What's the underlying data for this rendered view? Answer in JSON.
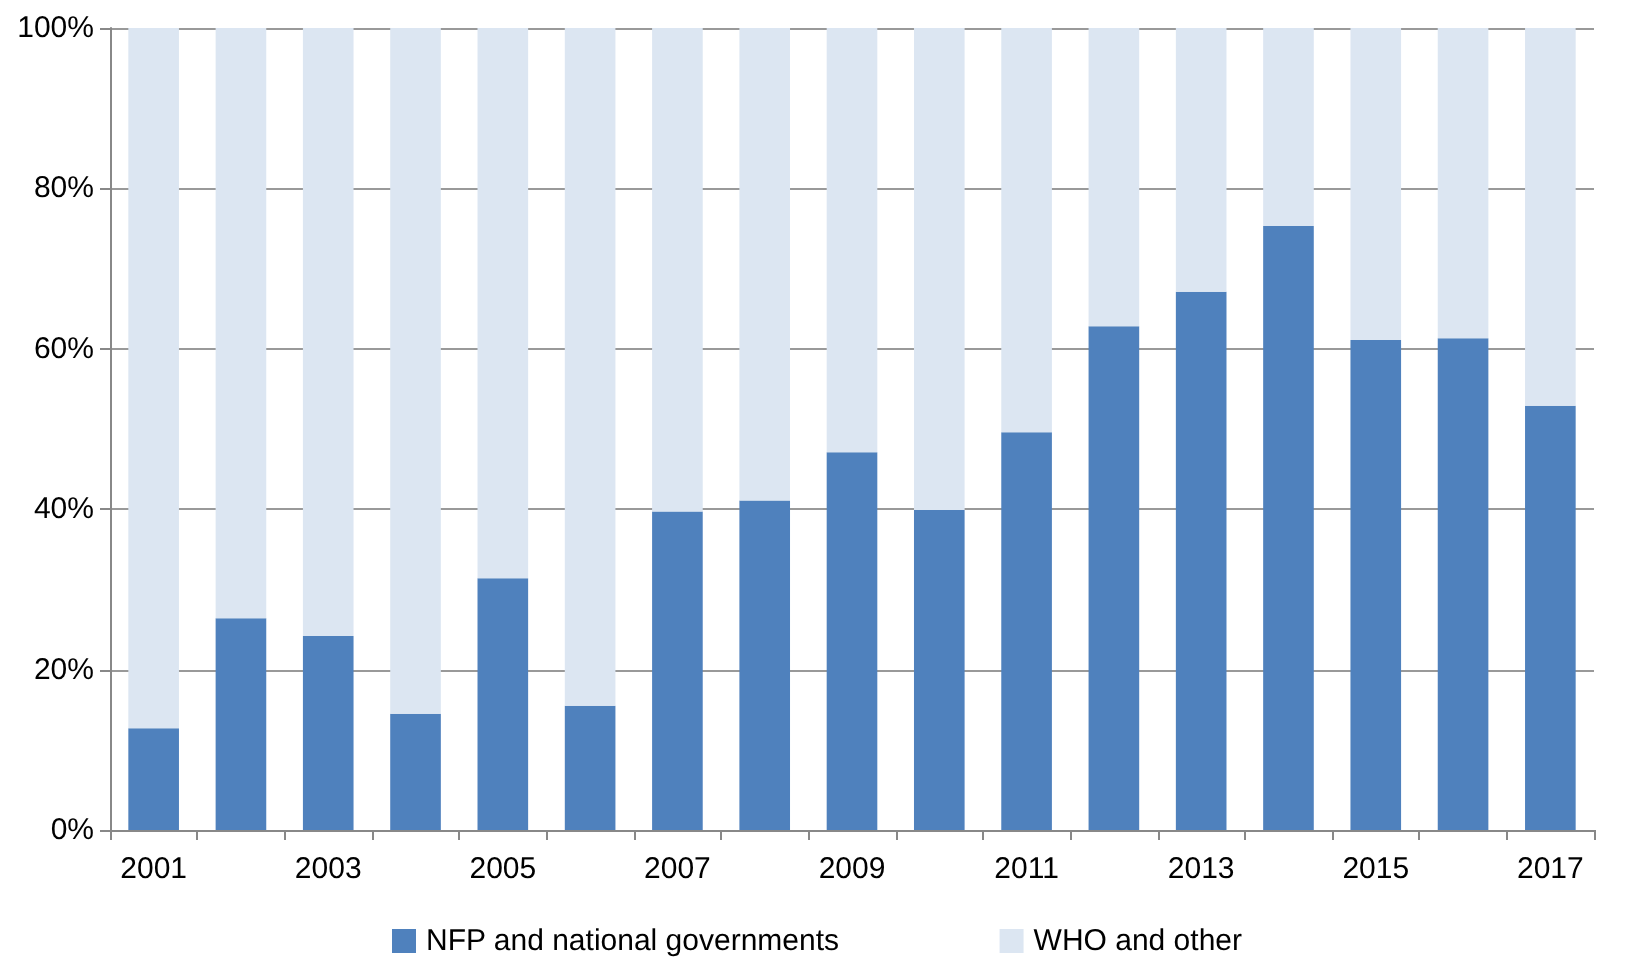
{
  "chart_data": {
    "type": "bar",
    "stacked": true,
    "categories": [
      "2001",
      null,
      "2003",
      null,
      "2005",
      null,
      "2007",
      null,
      "2009",
      null,
      "2011",
      null,
      "2013",
      null,
      "2015",
      null,
      "2017"
    ],
    "series": [
      {
        "name": "NFP and national governments",
        "color": "#4f81bd",
        "values": [
          12.7,
          26.4,
          24.2,
          14.5,
          31.4,
          15.5,
          39.7,
          41.1,
          47.1,
          39.9,
          49.6,
          62.8,
          67.1,
          75.3,
          61.1,
          61.3,
          52.9
        ]
      },
      {
        "name": "WHO and other",
        "color": "#dce6f2",
        "values": [
          87.3,
          73.6,
          75.8,
          85.5,
          68.6,
          84.5,
          60.3,
          58.9,
          52.9,
          60.1,
          50.4,
          37.2,
          32.9,
          24.7,
          38.9,
          38.7,
          47.1
        ]
      }
    ],
    "ylim": [
      0,
      100
    ],
    "yticks": [
      {
        "value": 0,
        "label": "0%"
      },
      {
        "value": 20,
        "label": "20%"
      },
      {
        "value": 40,
        "label": "40%"
      },
      {
        "value": 60,
        "label": "60%"
      },
      {
        "value": 80,
        "label": "80%"
      },
      {
        "value": 100,
        "label": "100%"
      }
    ],
    "grid": "y",
    "legend": "bottom"
  }
}
